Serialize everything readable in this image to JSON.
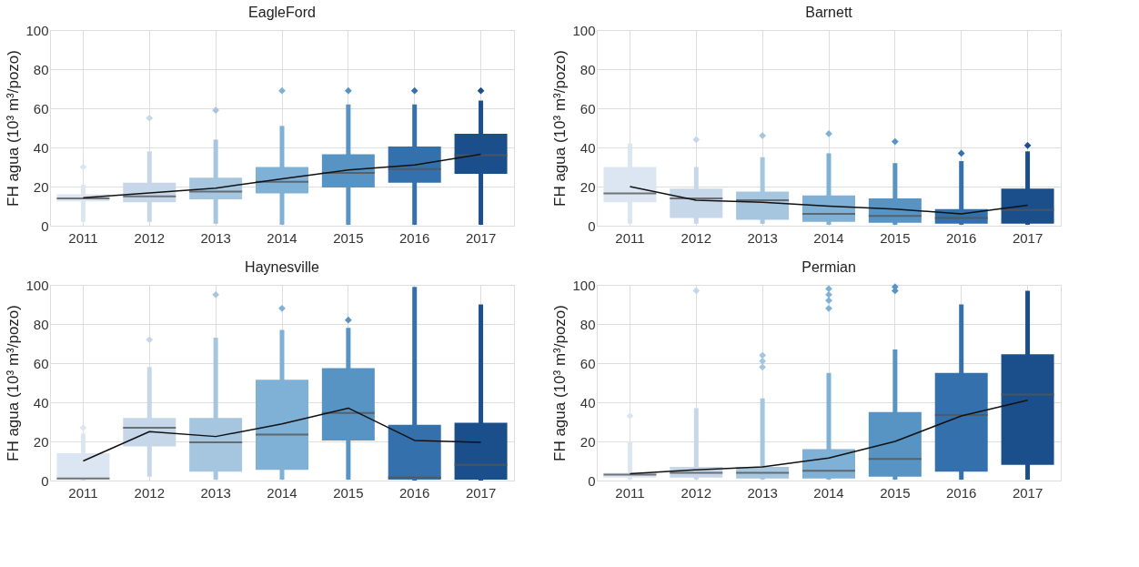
{
  "chart_data": [
    {
      "type": "box",
      "title": "EagleFord",
      "ylabel": "FH agua (10³ m³/pozo)",
      "categories": [
        "2011",
        "2012",
        "2013",
        "2014",
        "2015",
        "2016",
        "2017"
      ],
      "colors": [
        "#dbe6f2",
        "#c6d7ea",
        "#a5c6de",
        "#7fb0d6",
        "#5894c3",
        "#3470ab",
        "#1b4f8c"
      ],
      "ylim": [
        0,
        100
      ],
      "yticks": [
        0,
        20,
        40,
        60,
        80,
        100
      ],
      "grid": true,
      "boxes": [
        {
          "low": 2,
          "q1": 12.5,
          "median": 14,
          "q3": 16,
          "high": 21,
          "outliers": [
            30
          ]
        },
        {
          "low": 2,
          "q1": 12,
          "median": 15,
          "q3": 22,
          "high": 38,
          "outliers": [
            55
          ]
        },
        {
          "low": 1,
          "q1": 13.5,
          "median": 17.5,
          "q3": 24.5,
          "high": 44,
          "outliers": [
            59
          ]
        },
        {
          "low": 0.5,
          "q1": 16.5,
          "median": 22.5,
          "q3": 30,
          "high": 51,
          "outliers": [
            69
          ]
        },
        {
          "low": 0.5,
          "q1": 19.5,
          "median": 27,
          "q3": 36.5,
          "high": 62,
          "outliers": [
            69
          ]
        },
        {
          "low": 0.5,
          "q1": 22,
          "median": 29,
          "q3": 40.5,
          "high": 62,
          "outliers": [
            69
          ]
        },
        {
          "low": 0.5,
          "q1": 26.5,
          "median": 36,
          "q3": 47,
          "high": 64,
          "outliers": [
            69
          ]
        }
      ],
      "series": [
        {
          "type": "line",
          "color": "#111111",
          "values": [
            14.3,
            16.8,
            19.2,
            24,
            28.5,
            31,
            36.5
          ]
        }
      ]
    },
    {
      "type": "box",
      "title": "Barnett",
      "ylabel": "FH agua (10³ m³/pozo)",
      "categories": [
        "2011",
        "2012",
        "2013",
        "2014",
        "2015",
        "2016",
        "2017"
      ],
      "colors": [
        "#dbe6f2",
        "#c6d7ea",
        "#a5c6de",
        "#7fb0d6",
        "#5894c3",
        "#3470ab",
        "#1b4f8c"
      ],
      "ylim": [
        0,
        100
      ],
      "yticks": [
        0,
        20,
        40,
        60,
        80,
        100
      ],
      "grid": true,
      "boxes": [
        {
          "low": 1,
          "q1": 12,
          "median": 16.5,
          "q3": 30,
          "high": 42
        },
        {
          "low": 1,
          "q1": 4,
          "median": 14,
          "q3": 19,
          "high": 30,
          "outliers": [
            44
          ]
        },
        {
          "low": 1,
          "q1": 3,
          "median": 13,
          "q3": 17.5,
          "high": 35,
          "outliers": [
            46
          ]
        },
        {
          "low": 0.5,
          "q1": 2,
          "median": 6,
          "q3": 15.5,
          "high": 37,
          "outliers": [
            47
          ]
        },
        {
          "low": 0.5,
          "q1": 1.5,
          "median": 5,
          "q3": 14,
          "high": 32,
          "outliers": [
            43
          ]
        },
        {
          "low": 0.5,
          "q1": 1,
          "median": 4,
          "q3": 8.5,
          "high": 33,
          "outliers": [
            37
          ]
        },
        {
          "low": 0.5,
          "q1": 1,
          "median": 8,
          "q3": 19,
          "high": 38,
          "outliers": [
            41
          ]
        }
      ],
      "series": [
        {
          "type": "line",
          "color": "#111111",
          "values": [
            20,
            13,
            12,
            10,
            8.5,
            6,
            10.5
          ]
        }
      ]
    },
    {
      "type": "box",
      "title": "Haynesville",
      "ylabel": "FH agua (10³ m³/pozo)",
      "categories": [
        "2011",
        "2012",
        "2013",
        "2014",
        "2015",
        "2016",
        "2017"
      ],
      "colors": [
        "#dbe6f2",
        "#c6d7ea",
        "#a5c6de",
        "#7fb0d6",
        "#5894c3",
        "#3470ab",
        "#1b4f8c"
      ],
      "ylim": [
        0,
        100
      ],
      "yticks": [
        0,
        20,
        40,
        60,
        80,
        100
      ],
      "grid": true,
      "boxes": [
        {
          "low": 0,
          "q1": 0.5,
          "median": 1,
          "q3": 14,
          "high": 24,
          "outliers": [
            27
          ]
        },
        {
          "low": 2,
          "q1": 17.5,
          "median": 27,
          "q3": 32,
          "high": 58,
          "outliers": [
            72
          ]
        },
        {
          "low": 0.5,
          "q1": 4.5,
          "median": 19.5,
          "q3": 32,
          "high": 73,
          "outliers": [
            95
          ]
        },
        {
          "low": 0.5,
          "q1": 5.5,
          "median": 23.5,
          "q3": 51.5,
          "high": 77,
          "outliers": [
            88
          ]
        },
        {
          "low": 0.5,
          "q1": 20.5,
          "median": 34.5,
          "q3": 57.5,
          "high": 78,
          "outliers": [
            82
          ]
        },
        {
          "low": 0,
          "q1": 0.5,
          "median": 1.5,
          "q3": 28.5,
          "high": 99
        },
        {
          "low": 0,
          "q1": 0.5,
          "median": 8,
          "q3": 29.5,
          "high": 90
        }
      ],
      "series": [
        {
          "type": "line",
          "color": "#111111",
          "values": [
            10,
            25,
            22.5,
            29,
            37,
            20.5,
            19.5
          ]
        }
      ]
    },
    {
      "type": "box",
      "title": "Permian",
      "ylabel": "FH agua (10³ m³/pozo)",
      "categories": [
        "2011",
        "2012",
        "2013",
        "2014",
        "2015",
        "2016",
        "2017"
      ],
      "colors": [
        "#dbe6f2",
        "#c6d7ea",
        "#a5c6de",
        "#7fb0d6",
        "#5894c3",
        "#3470ab",
        "#1b4f8c"
      ],
      "ylim": [
        0,
        100
      ],
      "yticks": [
        0,
        20,
        40,
        60,
        80,
        100
      ],
      "grid": true,
      "boxes": [
        {
          "low": 0.5,
          "q1": 1.5,
          "median": 3,
          "q3": 4,
          "high": 20,
          "outliers": [
            33
          ]
        },
        {
          "low": 0.5,
          "q1": 1.5,
          "median": 4,
          "q3": 7,
          "high": 37,
          "outliers": [
            97
          ]
        },
        {
          "low": 0.5,
          "q1": 1,
          "median": 4,
          "q3": 7,
          "high": 42,
          "outliers": [
            58,
            61,
            64
          ]
        },
        {
          "low": 0.5,
          "q1": 1,
          "median": 5,
          "q3": 16,
          "high": 55,
          "outliers": [
            88,
            92,
            95,
            98
          ]
        },
        {
          "low": 0.5,
          "q1": 2,
          "median": 11,
          "q3": 35,
          "high": 67,
          "outliers": [
            97,
            99
          ]
        },
        {
          "low": 0.5,
          "q1": 4.5,
          "median": 33.5,
          "q3": 55,
          "high": 90
        },
        {
          "low": 0.5,
          "q1": 8,
          "median": 44,
          "q3": 64.5,
          "high": 97
        }
      ],
      "series": [
        {
          "type": "line",
          "color": "#111111",
          "values": [
            3.5,
            5.5,
            7,
            11.5,
            20,
            33,
            41
          ]
        }
      ]
    }
  ]
}
